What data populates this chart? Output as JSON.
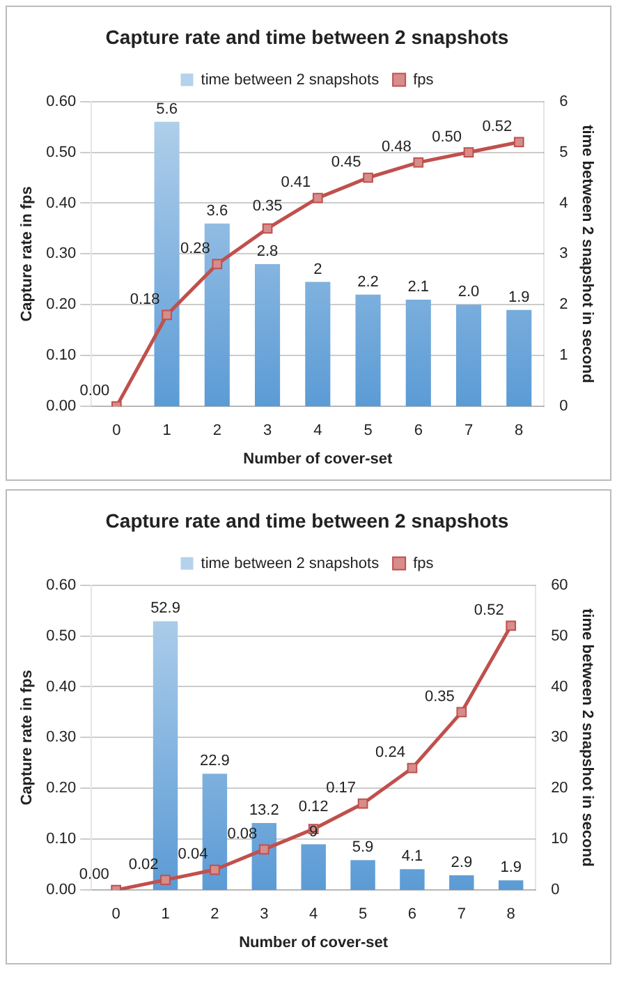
{
  "chart_data": [
    {
      "type": "bar",
      "title": "Capture rate and time between 2 snapshots",
      "xlabel": "Number of cover-set",
      "ylabel": "Capture rate in fps",
      "y2label": "time between 2 snapshot in second",
      "categories": [
        "0",
        "1",
        "2",
        "3",
        "4",
        "5",
        "6",
        "7",
        "8"
      ],
      "ylim": [
        0,
        0.6
      ],
      "yticks": [
        {
          "value": 0,
          "label": "0.00"
        },
        {
          "value": 0.1,
          "label": "0.10"
        },
        {
          "value": 0.2,
          "label": "0.20"
        },
        {
          "value": 0.3,
          "label": "0.30"
        },
        {
          "value": 0.4,
          "label": "0.40"
        },
        {
          "value": 0.5,
          "label": "0.50"
        },
        {
          "value": 0.6,
          "label": "0.60"
        }
      ],
      "y2lim": [
        0,
        6
      ],
      "y2ticks": [
        0,
        1,
        2,
        3,
        4,
        5,
        6
      ],
      "grid": "y",
      "legend": "top",
      "series": [
        {
          "name": "time between 2 snapshots",
          "axis": "y2",
          "color": "#5b9bd5",
          "values": [
            null,
            5.6,
            3.6,
            2.8,
            2.45,
            2.2,
            2.1,
            2.0,
            1.9
          ],
          "value_labels": [
            null,
            "5.6",
            "3.6",
            "2.8",
            "2",
            "2.2",
            "2.1",
            "2.0",
            "1.9"
          ]
        },
        {
          "name": "fps",
          "type": "line",
          "color": "#c0504d",
          "marker": "square",
          "values": [
            0,
            0.18,
            0.28,
            0.35,
            0.41,
            0.45,
            0.48,
            0.5,
            0.52
          ],
          "value_labels": [
            "0.00",
            "0.18",
            "0.28",
            "0.35",
            "0.41",
            "0.45",
            "0.48",
            "0.50",
            "0.52"
          ]
        }
      ]
    },
    {
      "type": "bar",
      "title": "Capture rate and time between 2 snapshots",
      "xlabel": "Number of cover-set",
      "ylabel": "Capture rate in fps",
      "y2label": "time between 2 snapshot in second",
      "categories": [
        "0",
        "1",
        "2",
        "3",
        "4",
        "5",
        "6",
        "7",
        "8"
      ],
      "ylim": [
        0,
        0.6
      ],
      "yticks": [
        {
          "value": 0,
          "label": "0.00"
        },
        {
          "value": 0.1,
          "label": "0.10"
        },
        {
          "value": 0.2,
          "label": "0.20"
        },
        {
          "value": 0.3,
          "label": "0.30"
        },
        {
          "value": 0.4,
          "label": "0.40"
        },
        {
          "value": 0.5,
          "label": "0.50"
        },
        {
          "value": 0.6,
          "label": "0.60"
        }
      ],
      "y2lim": [
        0,
        60
      ],
      "y2ticks": [
        0,
        10,
        20,
        30,
        40,
        50,
        60
      ],
      "grid": "y",
      "legend": "top",
      "series": [
        {
          "name": "time between 2 snapshots",
          "axis": "y2",
          "color": "#5b9bd5",
          "values": [
            null,
            52.9,
            22.9,
            13.2,
            9,
            5.9,
            4.1,
            2.9,
            1.9
          ],
          "value_labels": [
            null,
            "52.9",
            "22.9",
            "13.2",
            "9",
            "5.9",
            "4.1",
            "2.9",
            "1.9"
          ]
        },
        {
          "name": "fps",
          "type": "line",
          "color": "#c0504d",
          "marker": "square",
          "values": [
            0,
            0.02,
            0.04,
            0.08,
            0.12,
            0.17,
            0.24,
            0.35,
            0.52
          ],
          "value_labels": [
            "0.00",
            "0.02",
            "0.04",
            "0.08",
            "0.12",
            "0.17",
            "0.24",
            "0.35",
            "0.52"
          ]
        }
      ]
    }
  ]
}
